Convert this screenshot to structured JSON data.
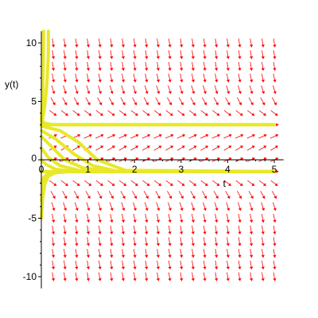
{
  "chart_data": {
    "type": "line",
    "subtype": "direction-field",
    "xlabel": "t",
    "ylabel": "y(t)",
    "xlim": [
      0,
      5.2
    ],
    "ylim": [
      -11,
      11
    ],
    "x_ticks": [
      "0",
      "1",
      "2",
      "3",
      "4",
      "5"
    ],
    "y_ticks": [
      "10",
      "5",
      "0",
      "-5",
      "-10"
    ],
    "origin_label": "0",
    "grid": false,
    "legend": "none",
    "field_color": "#ff0000",
    "curve_color": "#e8e82a",
    "equilibria": [
      -1,
      3
    ],
    "series": [
      {
        "points": [
          [
            0,
            -1
          ],
          [
            5,
            -1
          ]
        ]
      },
      {
        "points": [
          [
            0,
            3
          ],
          [
            5,
            3
          ]
        ]
      },
      {
        "points": [
          [
            0,
            -5
          ],
          [
            0.03,
            -3.2
          ],
          [
            0.08,
            -2
          ],
          [
            0.15,
            -1.4
          ],
          [
            0.3,
            -1.1
          ],
          [
            0.6,
            -1.02
          ],
          [
            1,
            -1
          ],
          [
            5,
            -1
          ]
        ]
      },
      {
        "points": [
          [
            0,
            -3.5
          ],
          [
            0.05,
            -2.1
          ],
          [
            0.12,
            -1.4
          ],
          [
            0.25,
            -1.1
          ],
          [
            0.5,
            -1.02
          ],
          [
            1,
            -1
          ],
          [
            5,
            -1
          ]
        ]
      },
      {
        "points": [
          [
            0,
            -2
          ],
          [
            0.05,
            -1.5
          ],
          [
            0.15,
            -1.15
          ],
          [
            0.35,
            -1.02
          ],
          [
            0.8,
            -1
          ],
          [
            5,
            -1
          ]
        ]
      },
      {
        "points": [
          [
            0,
            0
          ],
          [
            0.1,
            -0.4
          ],
          [
            0.3,
            -0.8
          ],
          [
            0.6,
            -0.95
          ],
          [
            1,
            -1
          ],
          [
            5,
            -1
          ]
        ]
      },
      {
        "points": [
          [
            0,
            1
          ],
          [
            0.15,
            0.2
          ],
          [
            0.4,
            -0.5
          ],
          [
            0.8,
            -0.9
          ],
          [
            1.3,
            -1
          ],
          [
            5,
            -1
          ]
        ]
      },
      {
        "points": [
          [
            0,
            2
          ],
          [
            0.2,
            1.2
          ],
          [
            0.5,
            0
          ],
          [
            0.9,
            -0.7
          ],
          [
            1.5,
            -0.98
          ],
          [
            5,
            -1
          ]
        ]
      },
      {
        "points": [
          [
            0,
            2.5
          ],
          [
            0.3,
            1.8
          ],
          [
            0.7,
            0.5
          ],
          [
            1.1,
            -0.5
          ],
          [
            1.6,
            -0.95
          ],
          [
            5,
            -1
          ]
        ]
      },
      {
        "points": [
          [
            0,
            2.9
          ],
          [
            0.4,
            2.5
          ],
          [
            0.8,
            1.5
          ],
          [
            1.2,
            0
          ],
          [
            1.8,
            -0.9
          ],
          [
            5,
            -1
          ]
        ]
      },
      {
        "points": [
          [
            0,
            3.5
          ],
          [
            0.06,
            3.15
          ],
          [
            0.2,
            3.02
          ],
          [
            0.5,
            3
          ],
          [
            5,
            3
          ]
        ]
      },
      {
        "points": [
          [
            0.15,
            11
          ],
          [
            0.15,
            9
          ],
          [
            0.12,
            6.5
          ],
          [
            0.07,
            4.5
          ],
          [
            0.02,
            3.3
          ],
          [
            0.1,
            3.05
          ],
          [
            0.4,
            3
          ],
          [
            5,
            3
          ]
        ]
      },
      {
        "points": [
          [
            0.05,
            11
          ],
          [
            0.04,
            8
          ],
          [
            0.03,
            6
          ],
          [
            0.01,
            4
          ],
          [
            0,
            3.3
          ]
        ]
      }
    ]
  }
}
